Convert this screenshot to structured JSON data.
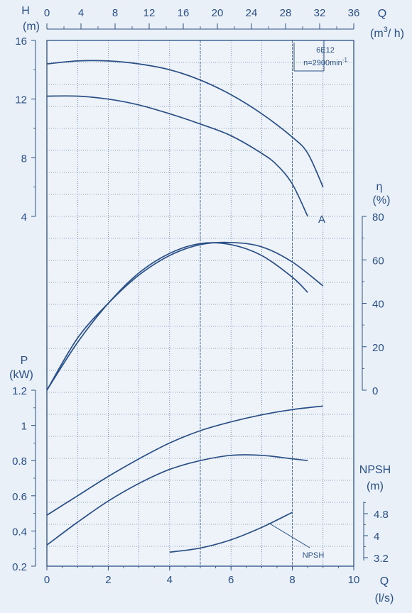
{
  "chart_data": {
    "type": "line",
    "model": "6E12",
    "speed": "n=2900min",
    "speed_exp": "-1",
    "x_primary": {
      "label": "Q",
      "unit": "(l/s)",
      "ticks": [
        "0",
        "2",
        "4",
        "6",
        "8",
        "10"
      ],
      "range": [
        0,
        10
      ]
    },
    "x_secondary": {
      "label": "Q",
      "unit": "(m",
      "unit_sup": "3",
      "unit_tail": "/ h)",
      "ticks": [
        "0",
        "4",
        "8",
        "12",
        "16",
        "20",
        "24",
        "28",
        "32",
        "36"
      ],
      "range": [
        0,
        36
      ]
    },
    "panels": {
      "head": {
        "label": "H",
        "unit": "(m)",
        "ticks": [
          "4",
          "8",
          "12",
          "16"
        ],
        "range": [
          4,
          16
        ],
        "curve_tag": "A",
        "series": [
          {
            "points": [
              [
                0,
                14.4
              ],
              [
                1,
                14.6
              ],
              [
                2,
                14.6
              ],
              [
                3,
                14.4
              ],
              [
                4,
                14.0
              ],
              [
                5,
                13.3
              ],
              [
                6,
                12.3
              ],
              [
                7,
                11.0
              ],
              [
                8,
                9.4
              ],
              [
                8.5,
                8.3
              ],
              [
                9,
                6.0
              ]
            ]
          },
          {
            "points": [
              [
                0,
                12.2
              ],
              [
                1,
                12.2
              ],
              [
                2,
                12.0
              ],
              [
                3,
                11.6
              ],
              [
                4,
                11.0
              ],
              [
                5,
                10.3
              ],
              [
                6,
                9.5
              ],
              [
                7,
                8.3
              ],
              [
                7.5,
                7.5
              ],
              [
                8,
                6.2
              ],
              [
                8.5,
                4.0
              ]
            ]
          }
        ]
      },
      "efficiency": {
        "label": "η",
        "unit": "(%)",
        "ticks": [
          "0",
          "20",
          "40",
          "60",
          "80"
        ],
        "range": [
          0,
          80
        ],
        "series": [
          {
            "points": [
              [
                0,
                0
              ],
              [
                1,
                24
              ],
              [
                2,
                40
              ],
              [
                3,
                53
              ],
              [
                4,
                62
              ],
              [
                5,
                67
              ],
              [
                6,
                68
              ],
              [
                7,
                66
              ],
              [
                8,
                59
              ],
              [
                9,
                48
              ]
            ]
          },
          {
            "points": [
              [
                0,
                0
              ],
              [
                1,
                22
              ],
              [
                2,
                40
              ],
              [
                3,
                54
              ],
              [
                4,
                63
              ],
              [
                5,
                67.5
              ],
              [
                6,
                67
              ],
              [
                7,
                62
              ],
              [
                8,
                52
              ],
              [
                8.5,
                45
              ]
            ]
          }
        ]
      },
      "power": {
        "label": "P",
        "unit": "(kW)",
        "ticks": [
          "0.2",
          "0.4",
          "0.6",
          "0.8",
          "1",
          "1.2"
        ],
        "range": [
          0.2,
          1.2
        ],
        "series": [
          {
            "points": [
              [
                0,
                0.49
              ],
              [
                1,
                0.6
              ],
              [
                2,
                0.71
              ],
              [
                3,
                0.81
              ],
              [
                4,
                0.9
              ],
              [
                5,
                0.97
              ],
              [
                6,
                1.02
              ],
              [
                7,
                1.06
              ],
              [
                8,
                1.09
              ],
              [
                9,
                1.11
              ]
            ]
          },
          {
            "points": [
              [
                0,
                0.32
              ],
              [
                1,
                0.45
              ],
              [
                2,
                0.57
              ],
              [
                3,
                0.67
              ],
              [
                4,
                0.75
              ],
              [
                5,
                0.8
              ],
              [
                6,
                0.83
              ],
              [
                7,
                0.83
              ],
              [
                8,
                0.81
              ],
              [
                8.5,
                0.8
              ]
            ]
          }
        ]
      },
      "npsh": {
        "label": "NPSH",
        "unit": "(m)",
        "ticks": [
          "3.2",
          "4",
          "4.8"
        ],
        "range": [
          3.2,
          5.2
        ],
        "curve_label": "NPSH",
        "series": [
          {
            "points": [
              [
                4,
                3.4
              ],
              [
                5,
                3.55
              ],
              [
                6,
                3.85
              ],
              [
                7,
                4.3
              ],
              [
                8,
                4.85
              ]
            ]
          }
        ]
      }
    }
  }
}
